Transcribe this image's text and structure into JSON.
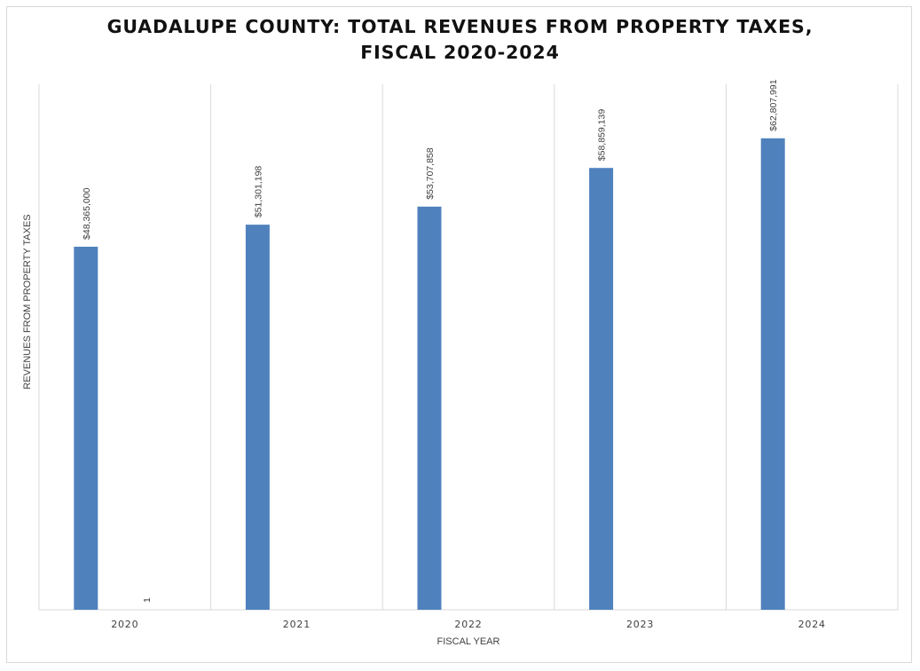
{
  "chart_data": {
    "type": "bar",
    "title_lines": [
      "GUADALUPE COUNTY: TOTAL REVENUES FROM PROPERTY TAXES,",
      "FISCAL 2020-2024"
    ],
    "xlabel": "FISCAL YEAR",
    "ylabel": "REVENUES FROM PROPERTY TAXES",
    "categories": [
      "2020",
      "2021",
      "2022",
      "2023",
      "2024"
    ],
    "series": [
      {
        "name": "Revenues",
        "values": [
          48365000,
          51301198,
          53707858,
          58859139,
          62807991
        ],
        "labels": [
          "$48,365,000",
          "$51,301,198",
          "$53,707,858",
          "$58,859,139",
          "$62,807,991"
        ],
        "color": "#4f81bd"
      },
      {
        "name": "Series 2",
        "values": [
          1,
          null,
          null,
          null,
          null
        ],
        "labels": [
          "1",
          "",
          "",
          "",
          ""
        ],
        "color": "#c0504d"
      }
    ],
    "ylim": [
      0,
      70000000
    ],
    "grid": "vertical",
    "legend": "none"
  }
}
